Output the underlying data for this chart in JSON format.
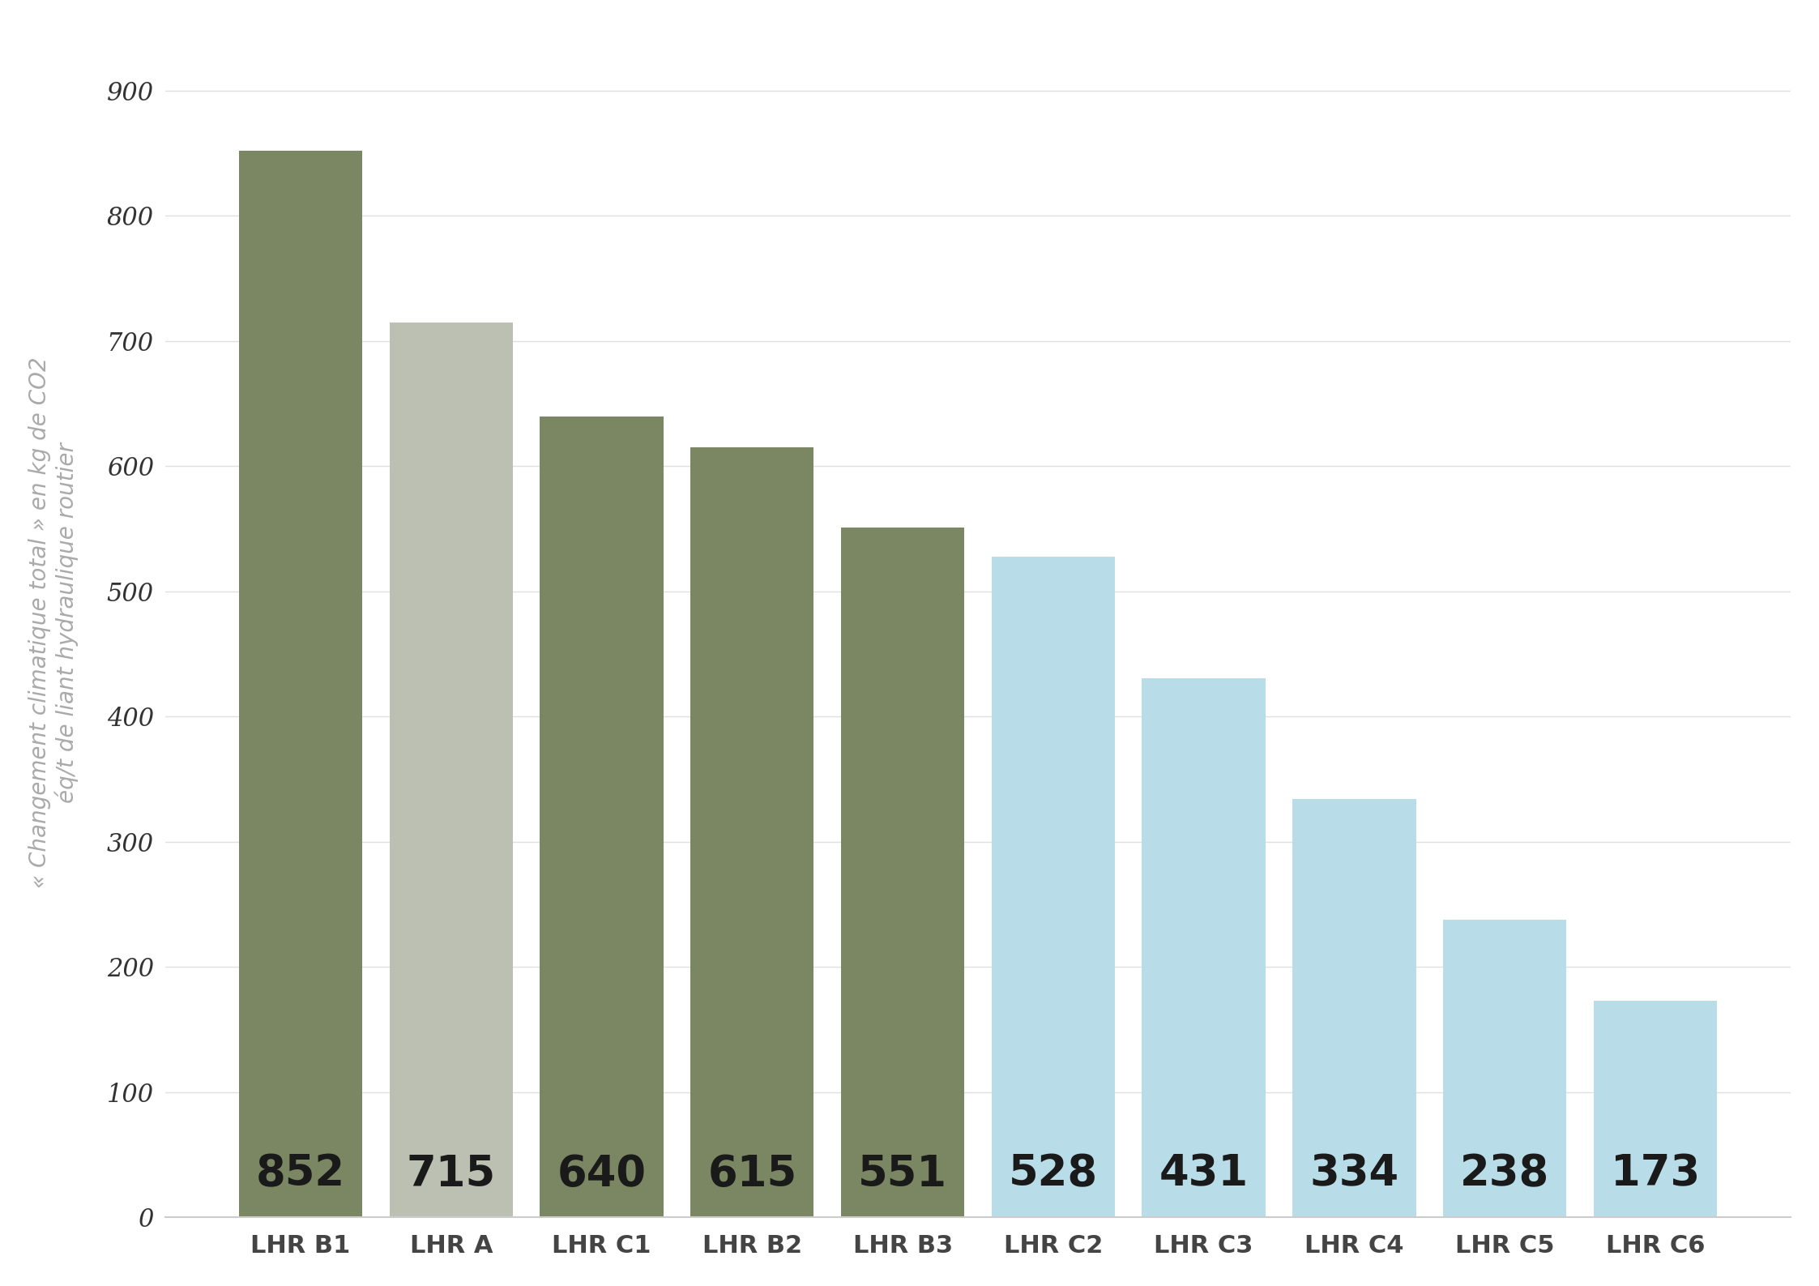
{
  "categories": [
    "LHR B1",
    "LHR A",
    "LHR C1",
    "LHR B2",
    "LHR B3",
    "LHR C2",
    "LHR C3",
    "LHR C4",
    "LHR C5",
    "LHR C6"
  ],
  "values": [
    852,
    715,
    640,
    615,
    551,
    528,
    431,
    334,
    238,
    173
  ],
  "bar_colors": [
    "#7b8762",
    "#bcc0b2",
    "#7b8762",
    "#7b8762",
    "#7b8762",
    "#b8dde8",
    "#b8dde8",
    "#b8dde8",
    "#b8dde8",
    "#b8dde8"
  ],
  "ylabel_line1": "« Changement climatique total » en kg de CO2",
  "ylabel_line2": "éq/t de liant hydraulique routier",
  "ylabel_color": "#aaaaaa",
  "ylabel_fontsize": 20,
  "tick_label_fontsize": 22,
  "value_label_fontsize": 38,
  "value_label_color": "#1a1a1a",
  "bar_value_label_weight": "bold",
  "yticks": [
    0,
    100,
    200,
    300,
    400,
    500,
    600,
    700,
    800,
    900
  ],
  "ylim": [
    0,
    950
  ],
  "background_color": "#ffffff",
  "grid_color": "#e0e0e0",
  "tick_color": "#333333",
  "axis_color": "#cccccc",
  "xlabel_fontsize": 22,
  "bar_width": 0.82
}
